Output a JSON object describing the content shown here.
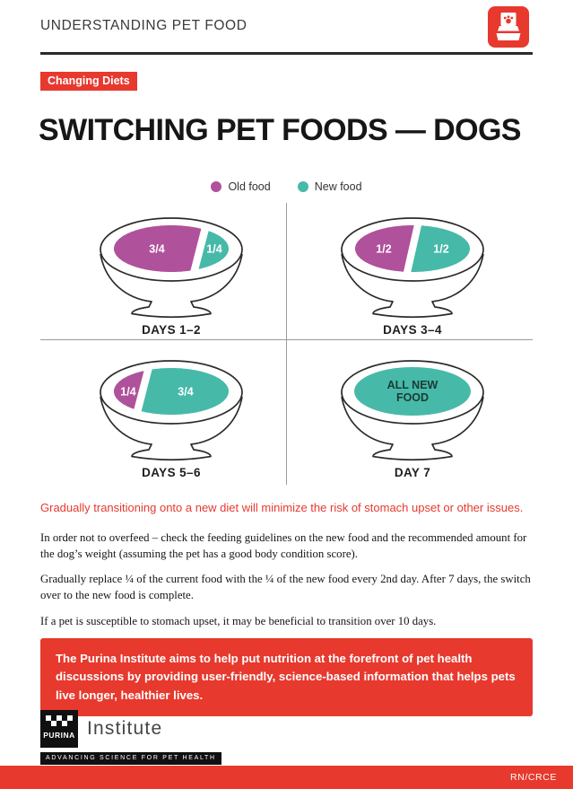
{
  "header": {
    "title": "UNDERSTANDING PET FOOD"
  },
  "badge": "Changing Diets",
  "title": "SWITCHING PET FOODS — DOGS",
  "legend": [
    {
      "label": "Old food",
      "color": "#B0519B"
    },
    {
      "label": "New food",
      "color": "#47B9A9"
    }
  ],
  "bowls": [
    {
      "label": "DAYS 1–2",
      "portions": [
        {
          "kind": "old",
          "fraction": 0.75,
          "text": "3/4"
        },
        {
          "kind": "new",
          "fraction": 0.25,
          "text": "1/4"
        }
      ]
    },
    {
      "label": "DAYS 3–4",
      "portions": [
        {
          "kind": "old",
          "fraction": 0.5,
          "text": "1/2"
        },
        {
          "kind": "new",
          "fraction": 0.5,
          "text": "1/2"
        }
      ]
    },
    {
      "label": "DAYS 5–6",
      "portions": [
        {
          "kind": "old",
          "fraction": 0.25,
          "text": "1/4"
        },
        {
          "kind": "new",
          "fraction": 0.75,
          "text": "3/4"
        }
      ]
    },
    {
      "label": "DAY 7",
      "portions": [
        {
          "kind": "new",
          "fraction": 1,
          "text": "ALL NEW FOOD",
          "lines": [
            "ALL NEW",
            "FOOD"
          ]
        }
      ]
    }
  ],
  "lead": "Gradually transitioning onto a new diet will minimize the risk of stomach upset or other issues.",
  "paragraphs": [
    "In order not to overfeed – check the feeding guidelines on the new food and the recommended amount for the dog’s weight (assuming the pet has a good body condition score).",
    "Gradually replace ¼ of the current food with the ¼ of the new food every 2nd day. After 7 days, the switch over to the new food is complete.",
    "If a pet is susceptible to stomach upset, it may be beneficial to transition over 10 days."
  ],
  "callout": "The Purina Institute aims to help put nutrition at the forefront of pet health discussions by providing user-friendly, science-based information that helps pets live longer, healthier lives.",
  "footer": {
    "brand": "PURINA",
    "brand_suffix": "Institute",
    "tagline": "Advancing Science for Pet Health",
    "code": "RN/CRCE"
  },
  "colors": {
    "accent_red": "#E7392E",
    "old_food": "#B0519B",
    "new_food": "#47B9A9",
    "day7_label": "#1C3A34",
    "text_dark": "#1E1E1E",
    "rule_dark": "#2B2B2B",
    "divider_gray": "#9A9A9A"
  }
}
